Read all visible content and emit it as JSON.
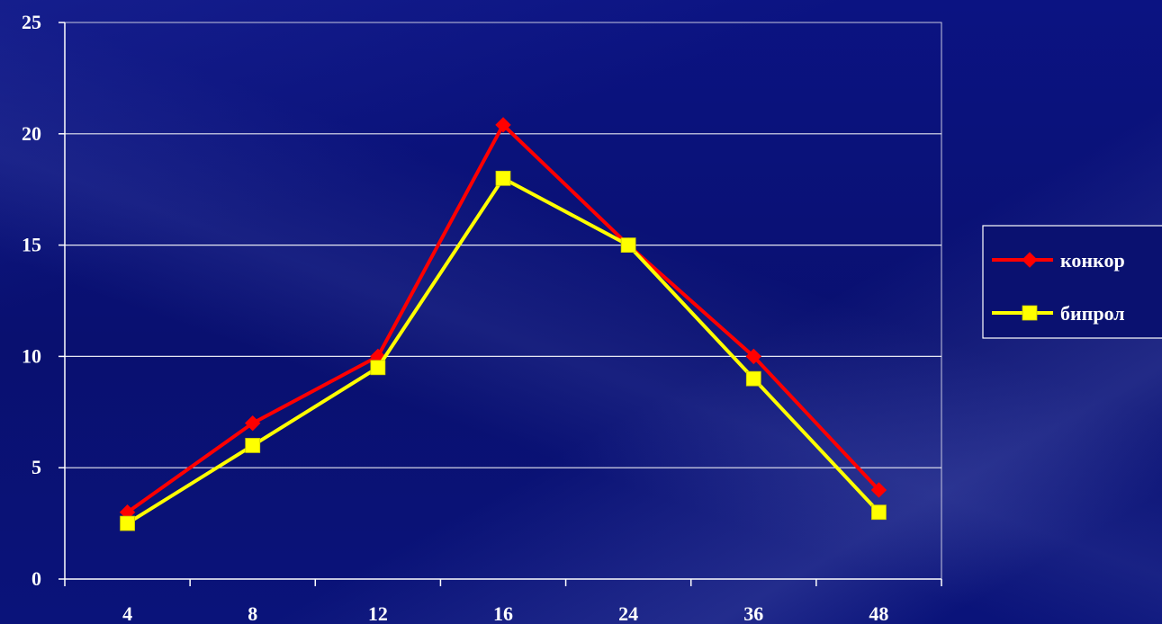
{
  "chart_data": {
    "type": "line",
    "categories": [
      "4",
      "8",
      "12",
      "16",
      "24",
      "36",
      "48"
    ],
    "series": [
      {
        "name": "конкор",
        "color": "#ff0000",
        "marker": "diamond",
        "values": [
          3,
          7,
          10,
          20.4,
          15,
          10,
          4
        ]
      },
      {
        "name": "бипрол",
        "color": "#ffff00",
        "marker": "square",
        "values": [
          2.5,
          6,
          9.5,
          18,
          15,
          9,
          3
        ]
      }
    ],
    "y_ticks": [
      "0",
      "5",
      "10",
      "15",
      "20",
      "25"
    ],
    "ylim": [
      0,
      25
    ],
    "grid": true,
    "legend_position": "right"
  }
}
